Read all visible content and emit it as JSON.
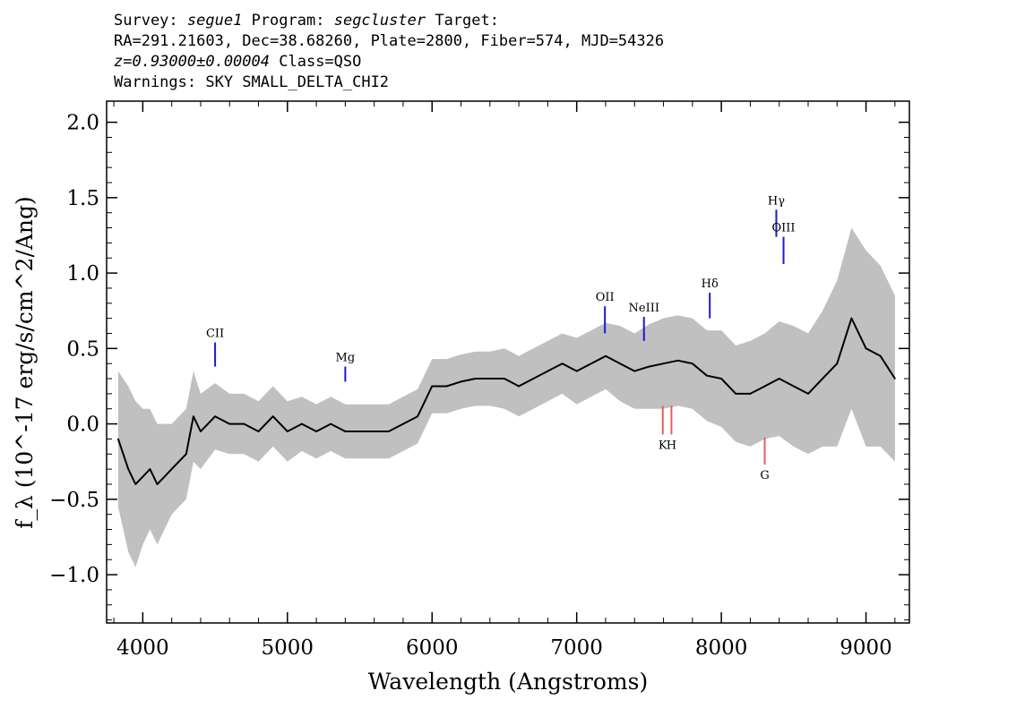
{
  "header": {
    "survey_label": "Survey:",
    "survey": "segue1",
    "program_label": "Program:",
    "program": "segcluster",
    "target_label": "Target:",
    "coords": "RA=291.21603, Dec=38.68260, Plate=2800, Fiber=574, MJD=54326",
    "redshift": "z=0.93000±0.00004",
    "class": "Class=QSO",
    "warnings": "Warnings: SKY SMALL_DELTA_CHI2"
  },
  "chart_data": {
    "type": "line",
    "title": "",
    "xlabel": "Wavelength (Angstroms)",
    "ylabel": "f_λ (10^-17 erg/s/cm^2/Ang)",
    "xlim": [
      3750,
      9300
    ],
    "ylim": [
      -1.32,
      2.14
    ],
    "xticks": [
      4000,
      5000,
      6000,
      7000,
      8000,
      9000
    ],
    "yticks": [
      -1.0,
      -0.5,
      0.0,
      0.5,
      1.0,
      1.5,
      2.0
    ],
    "ytick_labels": [
      "−1.0",
      "−0.5",
      "0.0",
      "0.5",
      "1.0",
      "1.5",
      "2.0"
    ],
    "xtick_labels": [
      "4000",
      "5000",
      "6000",
      "7000",
      "8000",
      "9000"
    ],
    "grid": false,
    "colors": {
      "flux": "#000000",
      "error": "#c0c0c0",
      "emission": "#1a1acd",
      "absorption": "#e06060"
    },
    "series": [
      {
        "x": [
          3830,
          3900,
          3950,
          4000,
          4050,
          4100,
          4150,
          4200,
          4250,
          4300,
          4350,
          4400,
          4500,
          4600,
          4700,
          4800,
          4900,
          5000,
          5100,
          5200,
          5300,
          5400,
          5500,
          5600,
          5700,
          5800,
          5900,
          5950,
          6000,
          6100,
          6200,
          6300,
          6400,
          6500,
          6600,
          6700,
          6800,
          6900,
          7000,
          7100,
          7200,
          7300,
          7400,
          7500,
          7600,
          7700,
          7800,
          7900,
          8000,
          8100,
          8200,
          8300,
          8400,
          8500,
          8600,
          8700,
          8800,
          8900,
          9000,
          9100,
          9200
        ],
        "values": [
          -0.1,
          -0.3,
          -0.4,
          -0.35,
          -0.3,
          -0.4,
          -0.35,
          -0.3,
          -0.25,
          -0.2,
          0.05,
          -0.05,
          0.05,
          0.0,
          0.0,
          -0.05,
          0.05,
          -0.05,
          0.0,
          -0.05,
          0.0,
          -0.05,
          -0.05,
          -0.05,
          -0.05,
          0.0,
          0.05,
          0.15,
          0.25,
          0.25,
          0.28,
          0.3,
          0.3,
          0.3,
          0.25,
          0.3,
          0.35,
          0.4,
          0.35,
          0.4,
          0.45,
          0.4,
          0.35,
          0.38,
          0.4,
          0.42,
          0.4,
          0.32,
          0.3,
          0.2,
          0.2,
          0.25,
          0.3,
          0.25,
          0.2,
          0.3,
          0.4,
          0.7,
          0.5,
          0.45,
          0.3
        ]
      }
    ],
    "error_half_width": [
      0.45,
      0.55,
      0.55,
      0.45,
      0.4,
      0.4,
      0.35,
      0.3,
      0.3,
      0.3,
      0.3,
      0.25,
      0.22,
      0.2,
      0.2,
      0.2,
      0.2,
      0.2,
      0.18,
      0.18,
      0.18,
      0.18,
      0.18,
      0.18,
      0.18,
      0.18,
      0.18,
      0.18,
      0.18,
      0.18,
      0.18,
      0.18,
      0.18,
      0.2,
      0.2,
      0.2,
      0.2,
      0.2,
      0.22,
      0.22,
      0.22,
      0.25,
      0.25,
      0.28,
      0.3,
      0.3,
      0.3,
      0.3,
      0.32,
      0.32,
      0.35,
      0.35,
      0.38,
      0.4,
      0.4,
      0.45,
      0.55,
      0.6,
      0.65,
      0.6,
      0.55
    ],
    "lines": [
      {
        "label": "CII",
        "x": 4500,
        "y0": 0.38,
        "y1": 0.54,
        "kind": "emission"
      },
      {
        "label": "Mg",
        "x": 5400,
        "y0": 0.28,
        "y1": 0.38,
        "kind": "emission"
      },
      {
        "label": "OII",
        "x": 7195,
        "y0": 0.6,
        "y1": 0.78,
        "kind": "emission"
      },
      {
        "label": "NeIII",
        "x": 7465,
        "y0": 0.55,
        "y1": 0.71,
        "kind": "emission"
      },
      {
        "label": "Hδ",
        "x": 7920,
        "y0": 0.7,
        "y1": 0.87,
        "kind": "emission"
      },
      {
        "label": "Hγ",
        "x": 8380,
        "y0": 1.24,
        "y1": 1.42,
        "kind": "emission"
      },
      {
        "label": "OIII",
        "x": 8430,
        "y0": 1.06,
        "y1": 1.24,
        "kind": "emission"
      },
      {
        "label": "K",
        "x": 7595,
        "y0": -0.07,
        "y1": 0.12,
        "kind": "absorption"
      },
      {
        "label": "H",
        "x": 7655,
        "y0": -0.07,
        "y1": 0.12,
        "kind": "absorption"
      },
      {
        "label": "G",
        "x": 8300,
        "y0": -0.27,
        "y1": -0.09,
        "kind": "absorption"
      }
    ]
  }
}
